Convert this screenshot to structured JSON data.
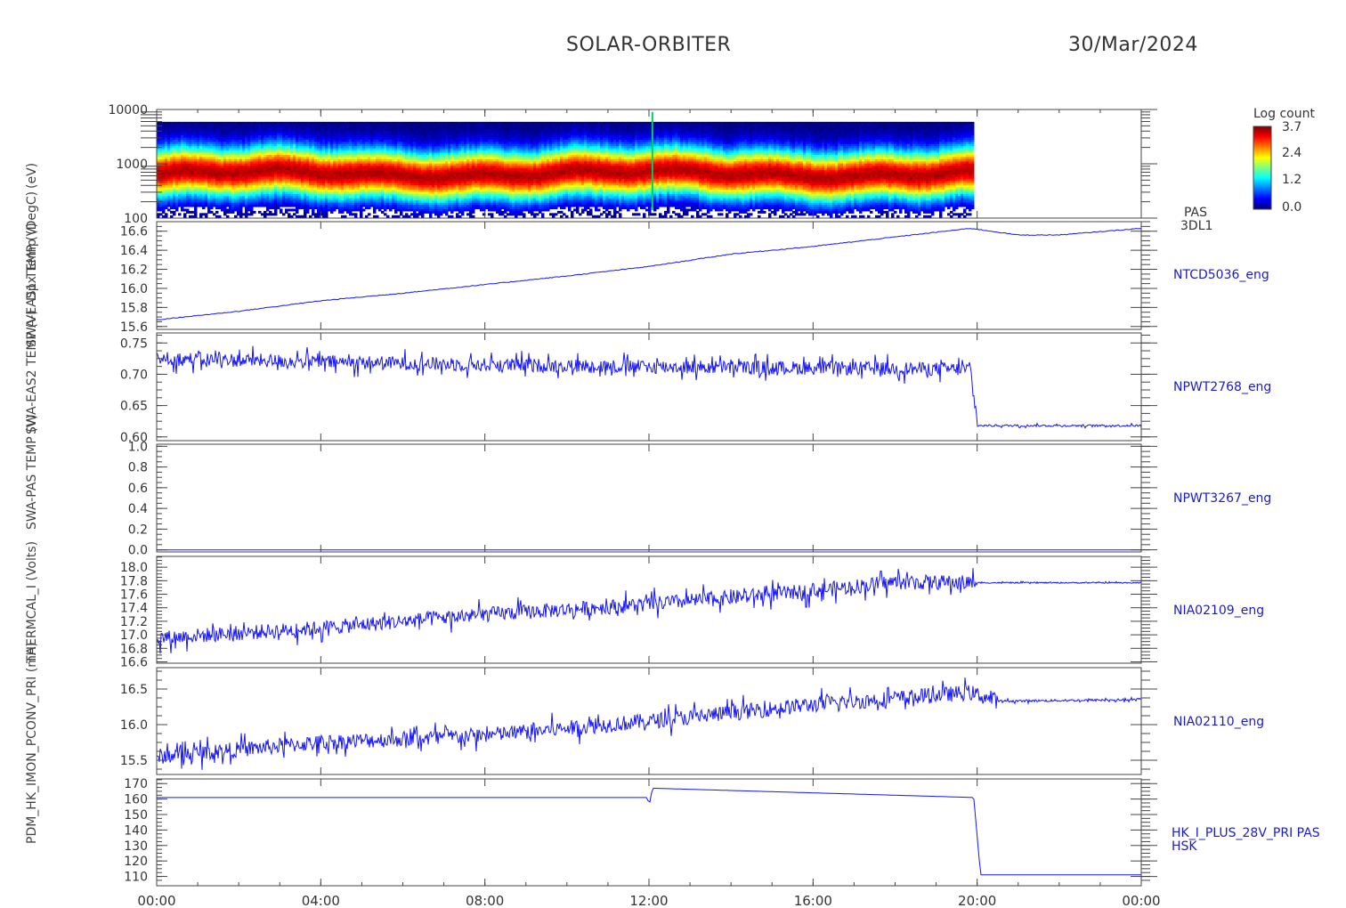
{
  "header": {
    "mission": "SOLAR-ORBITER",
    "date": "30/Mar/2024"
  },
  "colorbar": {
    "label": "Log count",
    "ticks": [
      "3.7",
      "2.4",
      "1.2",
      "0.0"
    ]
  },
  "left_labels": {
    "panel1": "(eV)",
    "panel2_texts": [
      "Dpx Temp (DegC)",
      "SWA-EAS1 TEMP (V)",
      "SWA-EAS2 TEMP (V)",
      "SWA-PAS TEMP (V)",
      "THERMCAL_I (Volts)",
      "PDM_HK_IMON_PCONV_PRI (mA)"
    ]
  },
  "chart_data": [
    {
      "type": "heatmap",
      "name": "PAS 3DL1",
      "right_label": [
        "PAS",
        "3DL1"
      ],
      "yaxis": "energy",
      "ylim": [
        100,
        10000
      ],
      "yscale": "log",
      "ticks": [
        "10000",
        "1000",
        "100"
      ],
      "data_end_time": "19:55",
      "peak_energy_eV": 650,
      "zlim": [
        0.0,
        3.7
      ]
    },
    {
      "type": "line",
      "right_label": "NTCD5036_eng",
      "ylim": [
        15.57,
        16.7
      ],
      "ticks": [
        "16.6",
        "16.4",
        "16.2",
        "16.0",
        "15.8",
        "15.6"
      ],
      "x": [
        "00:00",
        "02:00",
        "04:00",
        "06:00",
        "08:00",
        "10:00",
        "12:00",
        "14:00",
        "16:00",
        "18:00",
        "19:50",
        "21:00",
        "22:00",
        "24:00"
      ],
      "y": [
        15.67,
        15.76,
        15.87,
        15.95,
        16.04,
        16.13,
        16.23,
        16.36,
        16.44,
        16.54,
        16.63,
        16.56,
        16.56,
        16.63
      ]
    },
    {
      "type": "line",
      "right_label": "NPWT2768_eng",
      "ylim": [
        0.594,
        0.766
      ],
      "ticks": [
        "0.75",
        "0.70",
        "0.65",
        "0.60"
      ],
      "x": [
        "00:00",
        "04:00",
        "08:00",
        "12:00",
        "16:00",
        "19:50",
        "20:00",
        "24:00"
      ],
      "y": [
        0.725,
        0.72,
        0.715,
        0.712,
        0.71,
        0.708,
        0.618,
        0.618
      ],
      "noise": 0.022
    },
    {
      "type": "line",
      "right_label": "NPWT3267_eng",
      "ylim": [
        -0.02,
        1.02
      ],
      "ticks": [
        "1.0",
        "0.8",
        "0.6",
        "0.4",
        "0.2",
        "0.0"
      ],
      "x": [
        "00:00",
        "24:00"
      ],
      "y": [
        0.0,
        0.0
      ]
    },
    {
      "type": "line",
      "right_label": "NIA02109_eng",
      "ylim": [
        16.58,
        18.16
      ],
      "ticks": [
        "18.0",
        "17.8",
        "17.6",
        "17.4",
        "17.2",
        "17.0",
        "16.8",
        "16.6"
      ],
      "x": [
        "00:00",
        "04:00",
        "08:00",
        "12:00",
        "16:00",
        "18:00",
        "20:00",
        "24:00"
      ],
      "y": [
        16.95,
        17.1,
        17.3,
        17.45,
        17.65,
        17.78,
        17.77,
        17.77
      ],
      "noise": 0.22
    },
    {
      "type": "line",
      "right_label": "NIA02110_eng",
      "ylim": [
        15.3,
        16.8
      ],
      "ticks": [
        "16.5",
        "16.0",
        "15.5"
      ],
      "x": [
        "00:00",
        "04:00",
        "08:00",
        "12:00",
        "16:00",
        "19:50",
        "20:30",
        "24:00"
      ],
      "y": [
        15.55,
        15.75,
        15.85,
        16.05,
        16.28,
        16.45,
        16.33,
        16.35
      ],
      "noise": 0.22
    },
    {
      "type": "line",
      "right_label": [
        "HK_I_PLUS_28V_PRI PAS",
        "HSK"
      ],
      "ylim": [
        104,
        173
      ],
      "ticks": [
        "170",
        "160",
        "150",
        "140",
        "130",
        "120",
        "110"
      ],
      "x": [
        "00:00",
        "11:58",
        "12:00",
        "12:05",
        "19:55",
        "20:05",
        "24:00"
      ],
      "y": [
        161,
        161,
        155,
        167,
        161,
        111,
        111
      ]
    }
  ],
  "xaxis": {
    "ticks": [
      "00:00",
      "04:00",
      "08:00",
      "12:00",
      "16:00",
      "20:00",
      "00:00"
    ]
  },
  "colors": {
    "line": "#1414ff",
    "axis": "#444444",
    "label": "#1c1cc4"
  }
}
